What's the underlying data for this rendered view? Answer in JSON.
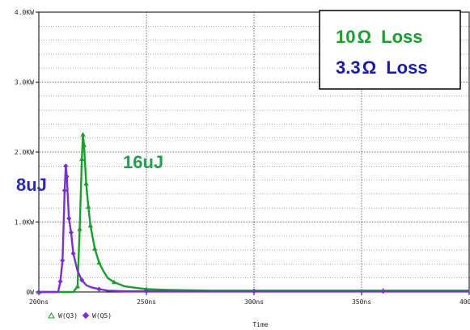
{
  "chart_data": {
    "type": "line",
    "xlabel": "Time",
    "ylabel": "",
    "xlim": [
      200,
      400
    ],
    "ylim": [
      0,
      4.0
    ],
    "x_unit": "ns",
    "x_ticks": [
      200,
      250,
      300,
      350,
      400
    ],
    "x_tick_labels": [
      "200ns",
      "250ns",
      "300ns",
      "350ns",
      "400ns"
    ],
    "y_ticks": [
      0,
      1.0,
      2.0,
      3.0,
      4.0
    ],
    "y_tick_labels": [
      "0W",
      "1.0KW",
      "2.0KW",
      "3.0KW",
      "4.0KW"
    ],
    "grid": true,
    "legend_position": "bottom-left",
    "series": [
      {
        "name": "W(Q3)",
        "color": "#1a9e2e",
        "marker": "triangle",
        "x": [
          200,
          210,
          216,
          218,
          219,
          220,
          220.5,
          221,
          222,
          223,
          224,
          226,
          228,
          230,
          232,
          235,
          240,
          245,
          250,
          260,
          280,
          300,
          320,
          340,
          360,
          380,
          400
        ],
        "y": [
          0,
          0,
          0,
          0.08,
          0.9,
          1.9,
          2.25,
          2.1,
          1.55,
          1.22,
          0.95,
          0.62,
          0.42,
          0.3,
          0.2,
          0.14,
          0.08,
          0.06,
          0.04,
          0.03,
          0.02,
          0.02,
          0.02,
          0.02,
          0.02,
          0.02,
          0.02
        ]
      },
      {
        "name": "W(Q5)",
        "color": "#7a2fd0",
        "marker": "diamond",
        "x": [
          200,
          205,
          209,
          210,
          211,
          212,
          212.5,
          213,
          214,
          215,
          216,
          218,
          220,
          222,
          224,
          228,
          232,
          240,
          250,
          260,
          280,
          300,
          320,
          340,
          360,
          380,
          400
        ],
        "y": [
          0,
          0,
          0,
          0.15,
          0.45,
          1.45,
          1.8,
          1.65,
          1.05,
          0.85,
          0.55,
          0.3,
          0.17,
          0.1,
          0.07,
          0.04,
          0.02,
          0.01,
          0.01,
          0.01,
          0.01,
          0.01,
          0.01,
          0.01,
          0.01,
          0.01,
          0.01
        ]
      }
    ],
    "annotations": [
      {
        "text": "8uJ",
        "color": "#2a2ab4"
      },
      {
        "text": "16uJ",
        "color": "#22a050"
      }
    ],
    "legend_box": {
      "line1_value": "10",
      "line1_symbol": "Ω",
      "line1_text": "Loss",
      "line1_color": "#1a9e2e",
      "line2_value": "3.3",
      "line2_symbol": "Ω",
      "line2_text": "Loss",
      "line2_color": "#1a1aa8"
    }
  }
}
